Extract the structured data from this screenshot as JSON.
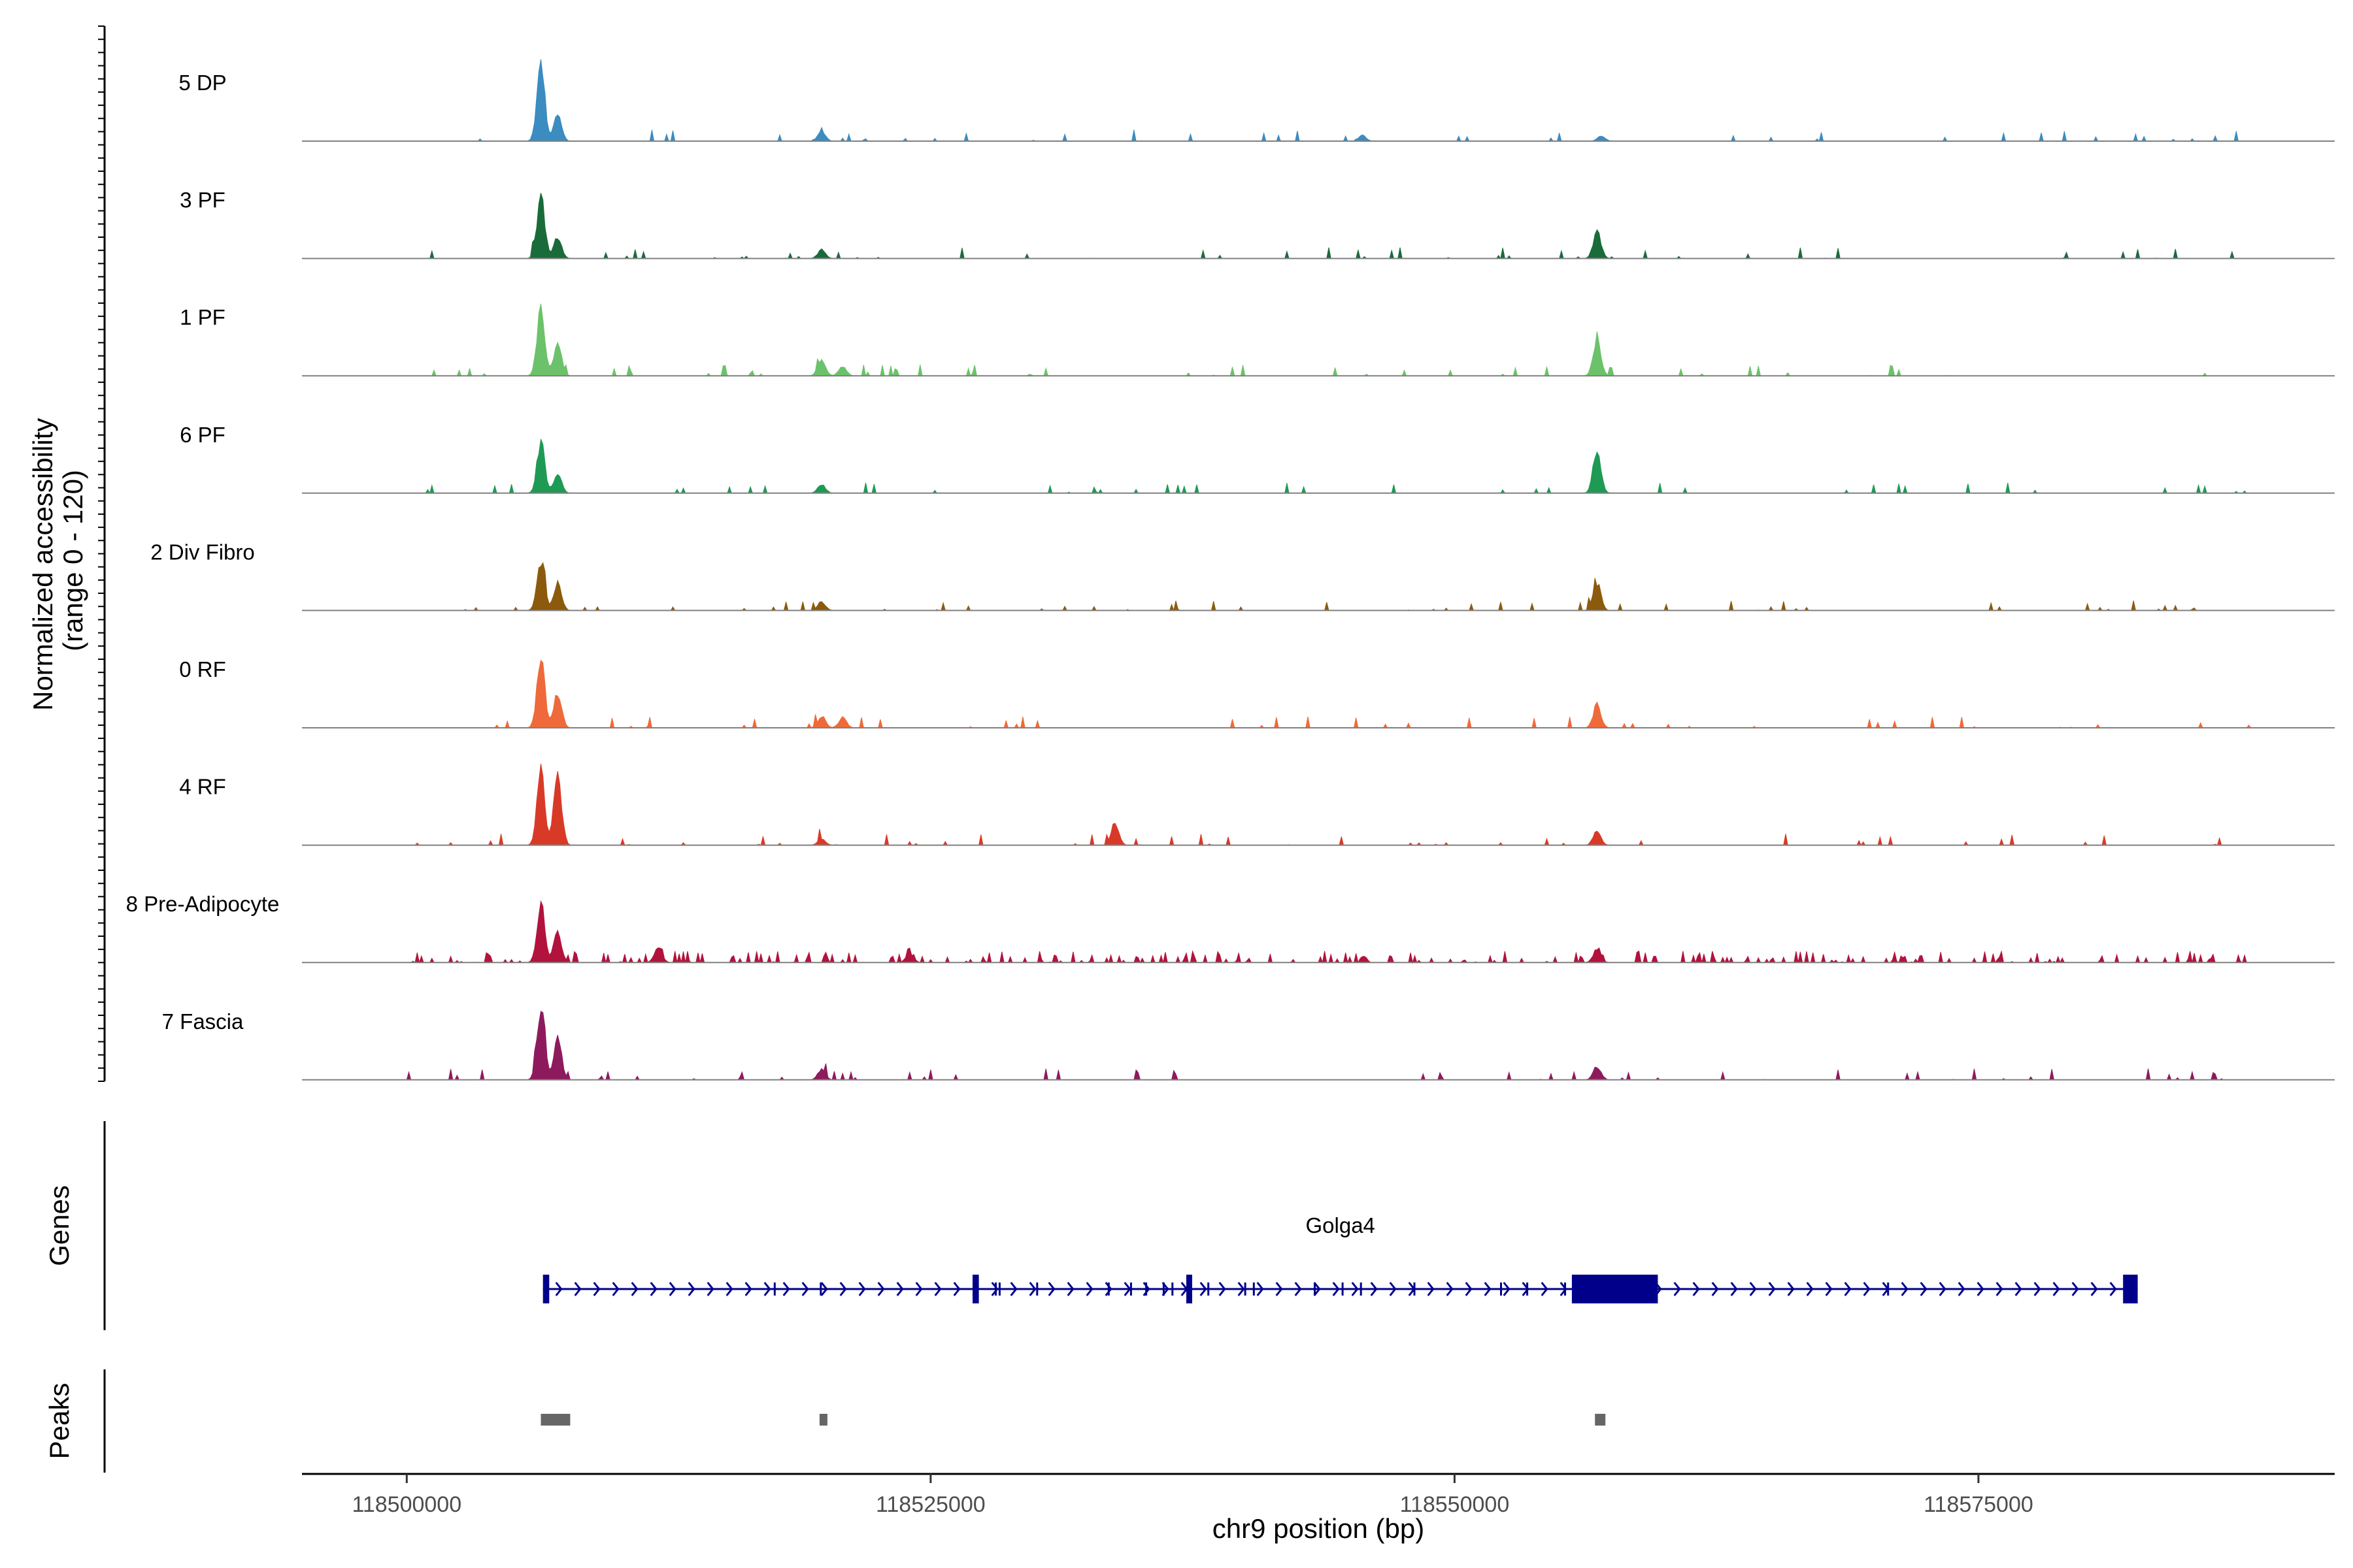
{
  "chart_data": {
    "type": "area",
    "title": "",
    "ylabel": "Normalized accessibility\n(range 0 - 120)",
    "ylabel_lines": [
      "Normalized accessibility",
      "(range 0 - 120)"
    ],
    "ylim": [
      0,
      120
    ],
    "xlabel": "chr9 position (bp)",
    "xlim": [
      118495000,
      118592000
    ],
    "x_ticks": [
      118500000,
      118525000,
      118550000,
      118575000
    ],
    "x_tick_labels": [
      "118500000",
      "118525000",
      "118550000",
      "118575000"
    ],
    "tracks": [
      {
        "name": "5 DP",
        "color": "#3A8CC1",
        "peaks": [
          [
            118506400,
            110
          ],
          [
            118507200,
            35
          ],
          [
            118519800,
            14
          ],
          [
            118545600,
            8
          ],
          [
            118557000,
            7
          ]
        ]
      },
      {
        "name": "3 PF",
        "color": "#1A6B3A",
        "peaks": [
          [
            118506400,
            90
          ],
          [
            118507200,
            30
          ],
          [
            118519800,
            12
          ],
          [
            118556800,
            38
          ]
        ]
      },
      {
        "name": "1 PF",
        "color": "#6CC26A",
        "peaks": [
          [
            118506400,
            95
          ],
          [
            118507200,
            45
          ],
          [
            118519800,
            22
          ],
          [
            118520800,
            14
          ],
          [
            118556800,
            50
          ]
        ]
      },
      {
        "name": "6 PF",
        "color": "#1E9A55",
        "peaks": [
          [
            118506400,
            70
          ],
          [
            118507200,
            28
          ],
          [
            118519800,
            12
          ],
          [
            118556800,
            60
          ]
        ]
      },
      {
        "name": "2 Div Fibro",
        "color": "#8C5A0C",
        "peaks": [
          [
            118506400,
            70
          ],
          [
            118507200,
            40
          ],
          [
            118519800,
            12
          ],
          [
            118556800,
            38
          ]
        ]
      },
      {
        "name": "0 RF",
        "color": "#EE6A3A",
        "peaks": [
          [
            118506400,
            95
          ],
          [
            118507200,
            50
          ],
          [
            118519800,
            16
          ],
          [
            118520800,
            14
          ],
          [
            118556800,
            32
          ]
        ]
      },
      {
        "name": "4 RF",
        "color": "#D93A28",
        "peaks": [
          [
            118506400,
            100
          ],
          [
            118507200,
            95
          ],
          [
            118519800,
            8
          ],
          [
            118533800,
            30
          ],
          [
            118556800,
            20
          ]
        ]
      },
      {
        "name": "8 Pre-Adipocyte",
        "color": "#B2133C",
        "peaks": [
          [
            118506400,
            80
          ],
          [
            118507200,
            40
          ],
          [
            118512000,
            20
          ],
          [
            118524000,
            12
          ],
          [
            118556800,
            18
          ]
        ]
      },
      {
        "name": "7 Fascia",
        "color": "#8E1A5E",
        "peaks": [
          [
            118506400,
            100
          ],
          [
            118507200,
            60
          ],
          [
            118519800,
            14
          ],
          [
            118556800,
            18
          ]
        ]
      }
    ],
    "genes": [
      {
        "name": "Golga4",
        "strand": "+",
        "start": 118506500,
        "end": 118582600,
        "exons": [
          [
            118506500,
            118506800
          ],
          [
            118527000,
            118527300
          ],
          [
            118537200,
            118537400
          ],
          [
            118555600,
            118559700
          ],
          [
            118581900,
            118582600
          ]
        ]
      }
    ],
    "peak_regions": [
      [
        118506400,
        118507800
      ],
      [
        118519700,
        118520000
      ],
      [
        118556700,
        118557200
      ]
    ],
    "track_group_labels": {
      "genes": "Genes",
      "peaks": "Peaks"
    },
    "line_colors": {
      "gene": "#00008B",
      "peak": "#666666",
      "baseline": "#808080",
      "axis": "#000000"
    }
  }
}
